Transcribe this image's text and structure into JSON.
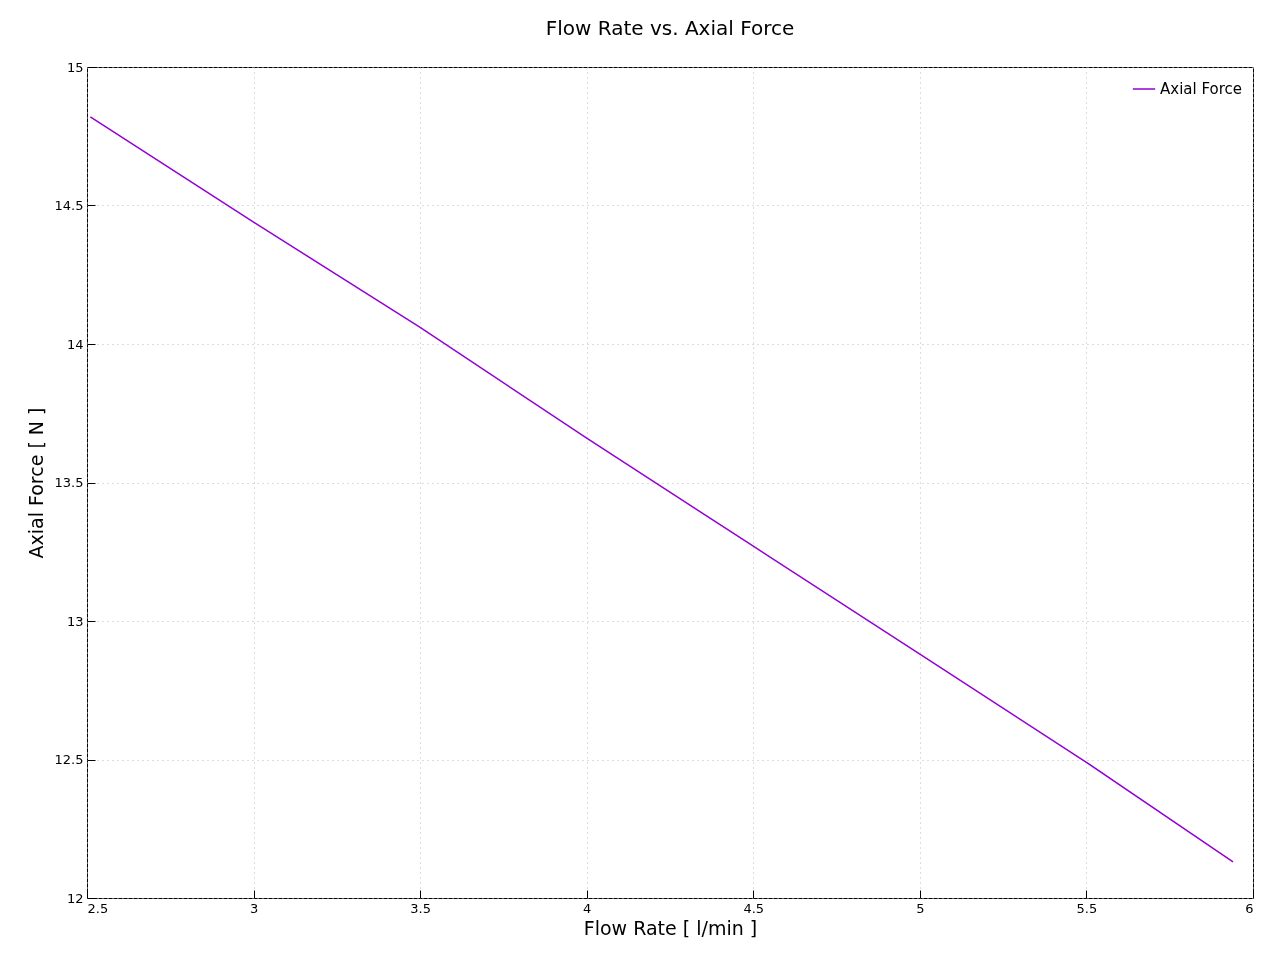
{
  "chart_data": {
    "type": "line",
    "title": "Flow Rate vs. Axial Force",
    "xlabel": "Flow Rate [ l/min ]",
    "ylabel": "Axial Force [ N ]",
    "x": [
      2.51,
      3,
      3.5,
      4,
      4.5,
      5,
      5.5,
      5.94
    ],
    "series": [
      {
        "name": "Axial Force",
        "color": "#9400d3",
        "values": [
          14.82,
          14.44,
          14.06,
          13.66,
          13.27,
          12.88,
          12.49,
          12.13
        ]
      }
    ],
    "xlim": [
      2.5,
      6
    ],
    "xticks": [
      2.5,
      3,
      3.5,
      4,
      4.5,
      5,
      5.5,
      6
    ],
    "ylim": [
      12,
      15
    ],
    "yticks": [
      12,
      12.5,
      13,
      13.5,
      14,
      14.5,
      15
    ],
    "grid": true,
    "legend": "top right",
    "marker": "none",
    "line_style": "solid"
  }
}
